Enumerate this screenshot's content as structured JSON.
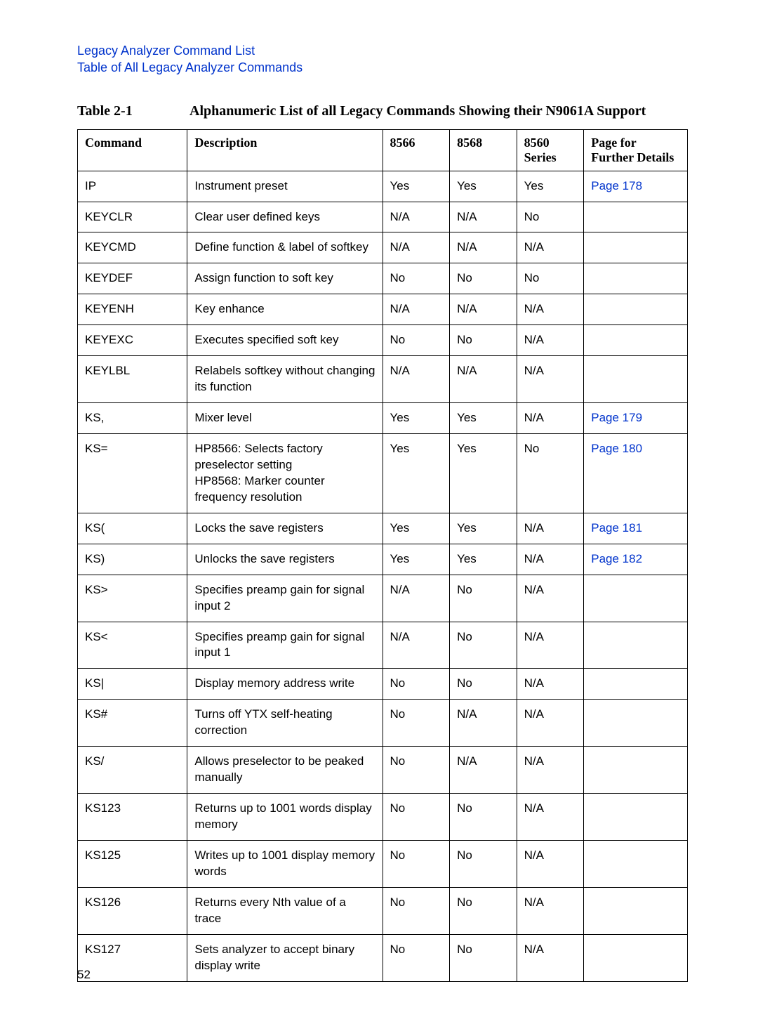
{
  "header": {
    "line1": "Legacy Analyzer Command List",
    "line2": "Table of All Legacy Analyzer Commands"
  },
  "caption": {
    "label": "Table 2-1",
    "title": "Alphanumeric List of all Legacy Commands Showing their N9061A Support"
  },
  "columns": {
    "c1": "Command",
    "c2": "Description",
    "c3": "8566",
    "c4": "8568",
    "c5": "8560 Series",
    "c6": "Page for Further Details"
  },
  "rows": [
    {
      "cmd": "IP",
      "desc": "Instrument preset",
      "c3": "Yes",
      "c4": "Yes",
      "c5": "Yes",
      "page": "Page 178",
      "link": true
    },
    {
      "cmd": "KEYCLR",
      "desc": "Clear user defined keys",
      "c3": "N/A",
      "c4": "N/A",
      "c5": "No",
      "page": "",
      "link": false
    },
    {
      "cmd": "KEYCMD",
      "desc": "Define function & label of softkey",
      "c3": "N/A",
      "c4": "N/A",
      "c5": "N/A",
      "page": "",
      "link": false
    },
    {
      "cmd": "KEYDEF",
      "desc": "Assign function to soft key",
      "c3": "No",
      "c4": "No",
      "c5": "No",
      "page": "",
      "link": false
    },
    {
      "cmd": "KEYENH",
      "desc": "Key enhance",
      "c3": "N/A",
      "c4": "N/A",
      "c5": "N/A",
      "page": "",
      "link": false
    },
    {
      "cmd": "KEYEXC",
      "desc": "Executes specified soft key",
      "c3": "No",
      "c4": "No",
      "c5": "N/A",
      "page": "",
      "link": false
    },
    {
      "cmd": "KEYLBL",
      "desc": "Relabels softkey without changing its function",
      "c3": "N/A",
      "c4": "N/A",
      "c5": "N/A",
      "page": "",
      "link": false
    },
    {
      "cmd": "KS,",
      "desc": "Mixer level",
      "c3": "Yes",
      "c4": "Yes",
      "c5": "N/A",
      "page": "Page 179",
      "link": true
    },
    {
      "cmd": "KS=",
      "desc": "HP8566: Selects factory preselector setting\nHP8568: Marker counter frequency resolution",
      "c3": "Yes",
      "c4": "Yes",
      "c5": "No",
      "page": "Page 180",
      "link": true
    },
    {
      "cmd": "KS(",
      "desc": "Locks the save registers",
      "c3": "Yes",
      "c4": "Yes",
      "c5": "N/A",
      "page": "Page 181",
      "link": true
    },
    {
      "cmd": "KS)",
      "desc": "Unlocks the save registers",
      "c3": "Yes",
      "c4": "Yes",
      "c5": "N/A",
      "page": "Page 182",
      "link": true
    },
    {
      "cmd": "KS>",
      "desc": "Specifies preamp gain for signal input 2",
      "c3": "N/A",
      "c4": "No",
      "c5": "N/A",
      "page": "",
      "link": false
    },
    {
      "cmd": "KS<",
      "desc": "Specifies preamp gain for signal input 1",
      "c3": "N/A",
      "c4": "No",
      "c5": "N/A",
      "page": "",
      "link": false
    },
    {
      "cmd": "KS|",
      "desc": "Display memory address write",
      "c3": "No",
      "c4": "No",
      "c5": "N/A",
      "page": "",
      "link": false
    },
    {
      "cmd": "KS#",
      "desc": "Turns off YTX self-heating correction",
      "c3": "No",
      "c4": "N/A",
      "c5": "N/A",
      "page": "",
      "link": false
    },
    {
      "cmd": "KS/",
      "desc": "Allows preselector to be peaked manually",
      "c3": "No",
      "c4": "N/A",
      "c5": "N/A",
      "page": "",
      "link": false
    },
    {
      "cmd": "KS123",
      "desc": "Returns up to 1001 words display memory",
      "c3": "No",
      "c4": "No",
      "c5": "N/A",
      "page": "",
      "link": false
    },
    {
      "cmd": "KS125",
      "desc": "Writes up to 1001 display memory words",
      "c3": "No",
      "c4": "No",
      "c5": "N/A",
      "page": "",
      "link": false
    },
    {
      "cmd": "KS126",
      "desc": "Returns every Nth value of a trace",
      "c3": "No",
      "c4": "No",
      "c5": "N/A",
      "page": "",
      "link": false
    },
    {
      "cmd": "KS127",
      "desc": "Sets analyzer to accept binary display write",
      "c3": "No",
      "c4": "No",
      "c5": "N/A",
      "page": "",
      "link": false
    }
  ],
  "page_number": "52"
}
